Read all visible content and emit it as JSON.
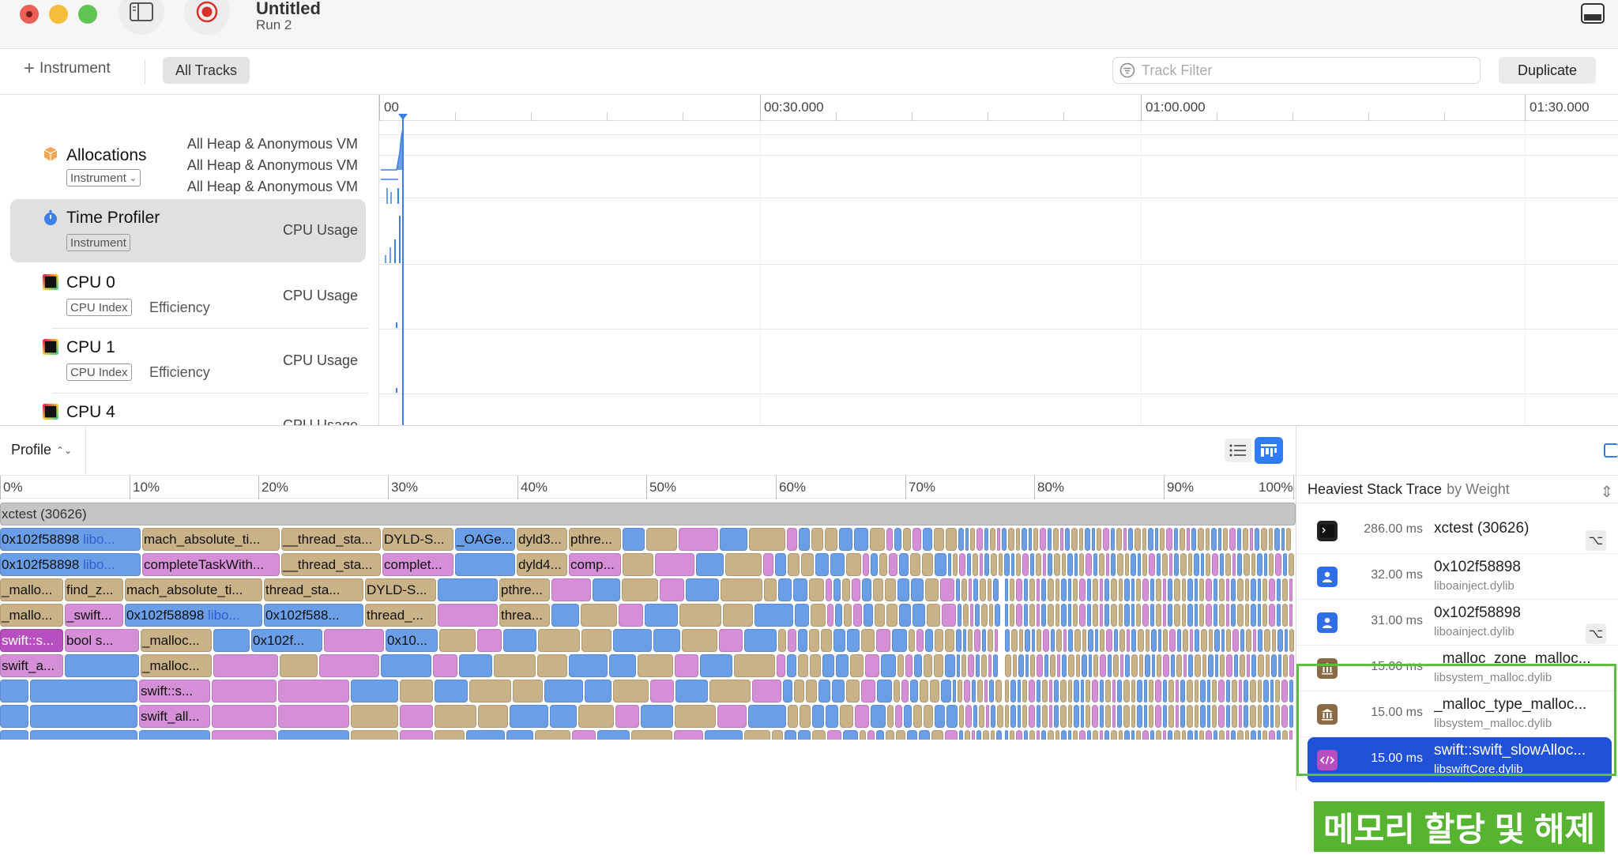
{
  "window": {
    "title": "Untitled",
    "run": "Run 2"
  },
  "toolbar": {
    "add_instrument": "Instrument",
    "all_tracks": "All Tracks",
    "track_filter_placeholder": "Track Filter",
    "duplicate": "Duplicate"
  },
  "ruler": {
    "labels": [
      "00",
      "00:30.000",
      "01:00.000",
      "01:30.000"
    ]
  },
  "tracks": {
    "allocations": {
      "name": "Allocations",
      "tag": "Instrument",
      "right": [
        "All Heap & Anonymous VM",
        "All Heap & Anonymous VM",
        "All Heap & Anonymous VM"
      ]
    },
    "time_profiler": {
      "name": "Time Profiler",
      "tag": "Instrument",
      "right": "CPU Usage"
    },
    "cpu0": {
      "name": "CPU 0",
      "tag": "CPU Index",
      "sub": "Efficiency",
      "right": "CPU Usage"
    },
    "cpu1": {
      "name": "CPU 1",
      "tag": "CPU Index",
      "sub": "Efficiency",
      "right": "CPU Usage"
    },
    "cpu4": {
      "name": "CPU 4",
      "right": "CPU Usage"
    }
  },
  "bottom": {
    "mode": "Profile",
    "percent_labels": [
      "0%",
      "10%",
      "20%",
      "30%",
      "40%",
      "50%",
      "60%",
      "70%",
      "80%",
      "90%",
      "100%"
    ],
    "root": "xctest (30626)"
  },
  "flame_rows": [
    [
      {
        "t": "0x102f58898",
        "lib": " libo...",
        "c": "c-blue"
      },
      {
        "t": "mach_absolute_ti...",
        "c": "c-tan"
      },
      {
        "t": "__thread_sta...",
        "c": "c-tan"
      },
      {
        "t": "DYLD-S...",
        "c": "c-tan"
      },
      {
        "t": "_OAGe...",
        "c": "c-blue"
      },
      {
        "t": "dyld3...",
        "c": "c-tan"
      },
      {
        "t": "pthre...",
        "c": "c-tan"
      }
    ],
    [
      {
        "t": "0x102f58898",
        "lib": " libo...",
        "c": "c-blue"
      },
      {
        "t": "completeTaskWith...",
        "c": "c-pink"
      },
      {
        "t": "__thread_sta...",
        "c": "c-tan"
      },
      {
        "t": "complet...",
        "c": "c-pink"
      },
      {
        "t": "",
        "c": "c-blue"
      },
      {
        "t": "dyld4...",
        "c": "c-tan"
      },
      {
        "t": "comp...",
        "c": "c-pink"
      }
    ],
    [
      {
        "t": "_mallo...",
        "c": "c-tan"
      },
      {
        "t": "find_z...",
        "c": "c-tan"
      },
      {
        "t": "mach_absolute_ti...",
        "c": "c-tan"
      },
      {
        "t": "thread_sta...",
        "c": "c-tan"
      },
      {
        "t": "DYLD-S...",
        "c": "c-tan"
      },
      {
        "t": "",
        "c": "c-blue"
      },
      {
        "t": "pthre...",
        "c": "c-tan"
      }
    ],
    [
      {
        "t": "_mallo...",
        "c": "c-tan"
      },
      {
        "t": "_swift...",
        "c": "c-pink"
      },
      {
        "t": "0x102f58898",
        "lib": " libo...",
        "c": "c-blue"
      },
      {
        "t": "0x102f588...",
        "c": "c-blue"
      },
      {
        "t": "thread_...",
        "c": "c-tan"
      },
      {
        "t": "",
        "c": "c-pink"
      },
      {
        "t": "threa...",
        "c": "c-tan"
      }
    ],
    [
      {
        "t": "swift::s...",
        "c": "c-pink-d"
      },
      {
        "t": "bool s...",
        "c": "c-pink"
      },
      {
        "t": "_malloc...",
        "c": "c-tan"
      },
      {
        "t": "",
        "c": "c-blue"
      },
      {
        "t": "0x102f...",
        "c": "c-blue"
      },
      {
        "t": "",
        "c": "c-pink"
      },
      {
        "t": "0x10...",
        "c": "c-blue"
      }
    ],
    [
      {
        "t": "swift_a...",
        "c": "c-pink"
      },
      {
        "t": "",
        "c": "c-blue"
      },
      {
        "t": "_malloc...",
        "c": "c-tan"
      },
      {
        "t": "",
        "c": "c-pink"
      },
      {
        "t": "",
        "c": "c-tan"
      },
      {
        "t": "",
        "c": "c-pink"
      },
      {
        "t": "",
        "c": "c-blue"
      }
    ],
    [
      {
        "t": "",
        "c": "c-blue"
      },
      {
        "t": "",
        "c": "c-blue"
      },
      {
        "t": "swift::s...",
        "c": "c-pink"
      },
      {
        "t": "",
        "c": "c-pink"
      },
      {
        "t": "",
        "c": "c-pink"
      },
      {
        "t": "",
        "c": "c-blue"
      },
      {
        "t": "",
        "c": "c-tan"
      }
    ],
    [
      {
        "t": "",
        "c": "c-blue"
      },
      {
        "t": "",
        "c": "c-blue"
      },
      {
        "t": "swift_all...",
        "c": "c-pink"
      },
      {
        "t": "",
        "c": "c-pink"
      },
      {
        "t": "",
        "c": "c-pink"
      },
      {
        "t": "",
        "c": "c-tan"
      },
      {
        "t": "",
        "c": "c-pink"
      }
    ],
    [
      {
        "t": "",
        "c": "c-blue"
      },
      {
        "t": "",
        "c": "c-blue"
      },
      {
        "t": "",
        "c": "c-blue"
      },
      {
        "t": "",
        "c": "c-pink"
      },
      {
        "t": "",
        "c": "c-blue"
      },
      {
        "t": "",
        "c": "c-tan"
      },
      {
        "t": "",
        "c": "c-pink"
      }
    ],
    [
      {
        "t": "",
        "c": "c-blue"
      },
      {
        "t": "",
        "c": "c-blue"
      },
      {
        "t": "",
        "c": "c-tan"
      },
      {
        "t": "",
        "c": "c-blue"
      },
      {
        "t": "",
        "c": "c-blue"
      },
      {
        "t": "",
        "c": "c-tan"
      },
      {
        "t": "",
        "c": "c-blue"
      }
    ]
  ],
  "inspector": {
    "title": "Heaviest Stack Trace",
    "by": "by Weight",
    "rows": [
      {
        "ms": "286.00 ms",
        "name": "xctest (30626)",
        "lib": "",
        "icon": "terminal-icon",
        "color": "#222222"
      },
      {
        "ms": "32.00 ms",
        "name": "0x102f58898",
        "lib": "liboainject.dylib",
        "icon": "user-icon",
        "color": "#2f6ee6"
      },
      {
        "ms": "31.00 ms",
        "name": "0x102f58898",
        "lib": "liboainject.dylib",
        "icon": "user-icon",
        "color": "#2f6ee6"
      },
      {
        "ms": "15.00 ms",
        "name": "_malloc_zone_malloc...",
        "lib": "libsystem_malloc.dylib",
        "icon": "library-icon",
        "color": "#8a6a45"
      },
      {
        "ms": "15.00 ms",
        "name": "_malloc_type_malloc...",
        "lib": "libsystem_malloc.dylib",
        "icon": "library-icon",
        "color": "#8a6a45"
      },
      {
        "ms": "15.00 ms",
        "name": "swift::swift_slowAlloc...",
        "lib": "libswiftCore.dylib",
        "icon": "code-icon",
        "color": "#b84fc0"
      }
    ]
  },
  "caption": "메모리 할당 및 해제"
}
